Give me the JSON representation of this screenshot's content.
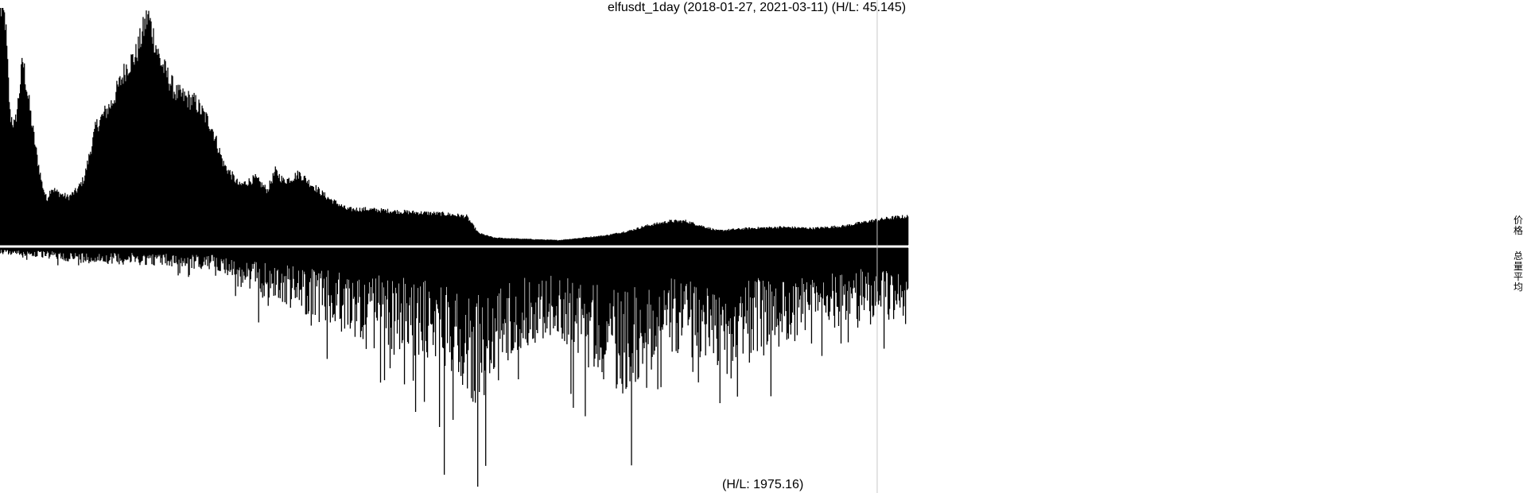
{
  "chart_data": {
    "type": "bar",
    "title": "elfusdt_1day (2018-01-27, 2021-03-11) (H/L: 45.145)",
    "start_date": "2018-01-27",
    "end_date": "2021-03-11",
    "days": 1140,
    "panels": [
      {
        "name": "价格",
        "position": "top",
        "hl_ratio": 45.145,
        "anchors": [
          [
            0,
            1.0
          ],
          [
            6,
            0.95
          ],
          [
            12,
            0.55
          ],
          [
            18,
            0.5
          ],
          [
            22,
            0.6
          ],
          [
            28,
            0.78
          ],
          [
            34,
            0.64
          ],
          [
            40,
            0.5
          ],
          [
            46,
            0.37
          ],
          [
            52,
            0.26
          ],
          [
            58,
            0.19
          ],
          [
            64,
            0.24
          ],
          [
            72,
            0.22
          ],
          [
            85,
            0.2
          ],
          [
            96,
            0.23
          ],
          [
            105,
            0.28
          ],
          [
            120,
            0.5
          ],
          [
            140,
            0.6
          ],
          [
            158,
            0.75
          ],
          [
            170,
            0.8
          ],
          [
            185,
            0.97
          ],
          [
            200,
            0.78
          ],
          [
            220,
            0.64
          ],
          [
            245,
            0.6
          ],
          [
            265,
            0.5
          ],
          [
            280,
            0.34
          ],
          [
            300,
            0.25
          ],
          [
            320,
            0.28
          ],
          [
            335,
            0.23
          ],
          [
            345,
            0.31
          ],
          [
            355,
            0.27
          ],
          [
            365,
            0.28
          ],
          [
            375,
            0.3
          ],
          [
            392,
            0.25
          ],
          [
            410,
            0.2
          ],
          [
            435,
            0.15
          ],
          [
            460,
            0.15
          ],
          [
            500,
            0.14
          ],
          [
            560,
            0.13
          ],
          [
            585,
            0.12
          ],
          [
            600,
            0.05
          ],
          [
            620,
            0.03
          ],
          [
            660,
            0.025
          ],
          [
            700,
            0.02
          ],
          [
            760,
            0.04
          ],
          [
            790,
            0.06
          ],
          [
            810,
            0.08
          ],
          [
            840,
            0.1
          ],
          [
            860,
            0.1
          ],
          [
            880,
            0.08
          ],
          [
            900,
            0.06
          ],
          [
            940,
            0.07
          ],
          [
            980,
            0.075
          ],
          [
            1020,
            0.07
          ],
          [
            1060,
            0.08
          ],
          [
            1090,
            0.1
          ],
          [
            1120,
            0.115
          ],
          [
            1140,
            0.12
          ]
        ]
      },
      {
        "name": "总量平均",
        "position": "bottom",
        "hl_ratio": 1975.16,
        "label": "(H/L: 1975.16)",
        "anchors": [
          [
            0,
            0.02
          ],
          [
            40,
            0.03
          ],
          [
            100,
            0.05
          ],
          [
            200,
            0.06
          ],
          [
            280,
            0.08
          ],
          [
            300,
            0.14
          ],
          [
            380,
            0.22
          ],
          [
            420,
            0.28
          ],
          [
            500,
            0.35
          ],
          [
            560,
            0.4
          ],
          [
            600,
            0.55
          ],
          [
            640,
            0.35
          ],
          [
            700,
            0.3
          ],
          [
            780,
            0.5
          ],
          [
            840,
            0.35
          ],
          [
            900,
            0.4
          ],
          [
            960,
            0.35
          ],
          [
            1020,
            0.3
          ],
          [
            1080,
            0.25
          ],
          [
            1140,
            0.2
          ]
        ],
        "spikes": [
          [
            320,
            0.14
          ],
          [
            395,
            0.28
          ],
          [
            428,
            0.35
          ],
          [
            483,
            0.2
          ],
          [
            551,
            0.75
          ],
          [
            557,
            0.95
          ],
          [
            568,
            0.72
          ],
          [
            620,
            0.5
          ],
          [
            650,
            0.55
          ],
          [
            700,
            0.35
          ],
          [
            738,
            0.5
          ],
          [
            777,
            0.45
          ],
          [
            795,
            0.32
          ],
          [
            850,
            0.44
          ],
          [
            885,
            0.45
          ],
          [
            903,
            0.65
          ],
          [
            918,
            0.36
          ],
          [
            940,
            0.48
          ],
          [
            958,
            0.45
          ],
          [
            1018,
            0.4
          ],
          [
            1055,
            0.4
          ],
          [
            1092,
            0.32
          ],
          [
            1115,
            0.3
          ]
        ]
      }
    ],
    "vertical_marker_day": 1101,
    "bar_color": "#000000",
    "marker_color": "#c8c8c8"
  },
  "legend": {
    "price": "价格",
    "volume": "总量平均"
  }
}
